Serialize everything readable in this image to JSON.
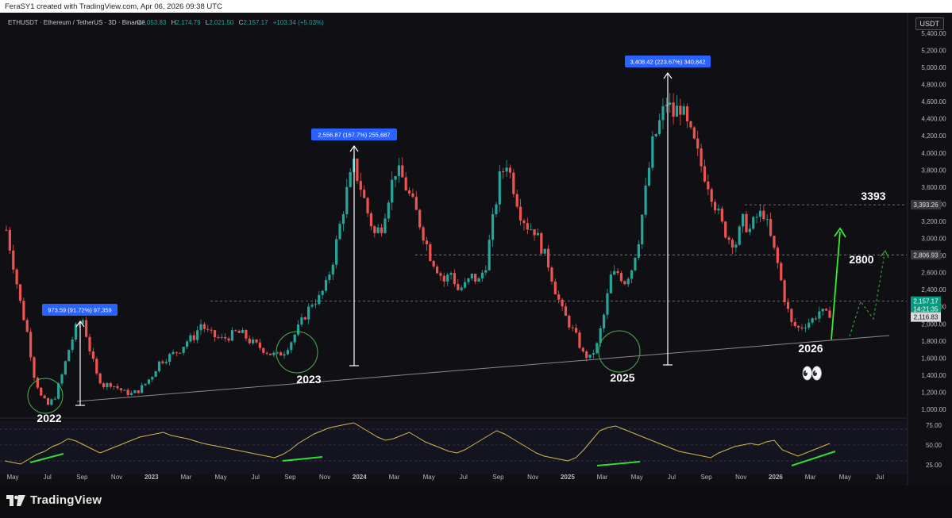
{
  "credit": "FeraSY1 created with TradingView.com, Apr 06, 2026 09:38 UTC",
  "header": {
    "symbol": "ETHUSDT · Ethereum / TetherUS · 3D · Binance",
    "open_label": "O",
    "open": "2,053.83",
    "high_label": "H",
    "high": "2,174.79",
    "low_label": "L",
    "low": "2,021.50",
    "close_label": "C",
    "close": "2,157.17",
    "change": "+103.34 (+5.03%)"
  },
  "currency_badge": "USDT",
  "brand": "TradingView",
  "colors": {
    "background": "#0f0f14",
    "up": "#26a69a",
    "down": "#ef5350",
    "rsi": "#d6b64a",
    "annotation_green": "#4caf50",
    "measure_badge": "#2962ff"
  },
  "chart_data": [
    {
      "type": "candlestick",
      "title": "ETHUSDT · Ethereum / TetherUS · 3D · Binance",
      "ylim": [
        900,
        5500
      ],
      "y_ticks": [
        "1,000.00",
        "1,200.00",
        "1,400.00",
        "1,600.00",
        "1,800.00",
        "2,000.00",
        "2,200.00",
        "2,400.00",
        "2,600.00",
        "2,800.00",
        "3,000.00",
        "3,200.00",
        "3,400.00",
        "3,600.00",
        "3,800.00",
        "4,000.00",
        "4,200.00",
        "4,400.00",
        "4,600.00",
        "4,800.00",
        "5,000.00",
        "5,200.00",
        "5,400.00"
      ],
      "x_ticks": [
        "May",
        "Jul",
        "Sep",
        "Nov",
        "2023",
        "Mar",
        "May",
        "Jul",
        "Sep",
        "Nov",
        "2024",
        "Mar",
        "May",
        "Jul",
        "Sep",
        "Nov",
        "2025",
        "Mar",
        "May",
        "Jul",
        "Sep",
        "Nov",
        "2026",
        "Mar",
        "May",
        "Jul"
      ],
      "price_path": [
        [
          0,
          3100
        ],
        [
          2,
          2700
        ],
        [
          4,
          2250
        ],
        [
          6,
          1900
        ],
        [
          8,
          1400
        ],
        [
          10,
          1150
        ],
        [
          12,
          1050
        ],
        [
          14,
          1150
        ],
        [
          16,
          1400
        ],
        [
          18,
          1700
        ],
        [
          20,
          1950
        ],
        [
          22,
          2050
        ],
        [
          24,
          1700
        ],
        [
          26,
          1400
        ],
        [
          28,
          1280
        ],
        [
          30,
          1300
        ],
        [
          32,
          1250
        ],
        [
          34,
          1200
        ],
        [
          36,
          1180
        ],
        [
          38,
          1220
        ],
        [
          40,
          1300
        ],
        [
          42,
          1400
        ],
        [
          44,
          1550
        ],
        [
          46,
          1600
        ],
        [
          48,
          1650
        ],
        [
          50,
          1700
        ],
        [
          52,
          1800
        ],
        [
          54,
          1850
        ],
        [
          56,
          2000
        ],
        [
          58,
          1900
        ],
        [
          60,
          1850
        ],
        [
          62,
          1820
        ],
        [
          64,
          1850
        ],
        [
          66,
          1900
        ],
        [
          68,
          1880
        ],
        [
          70,
          1800
        ],
        [
          72,
          1750
        ],
        [
          74,
          1700
        ],
        [
          76,
          1650
        ],
        [
          78,
          1630
        ],
        [
          80,
          1680
        ],
        [
          82,
          1800
        ],
        [
          84,
          1950
        ],
        [
          86,
          2100
        ],
        [
          88,
          2250
        ],
        [
          90,
          2300
        ],
        [
          92,
          2450
        ],
        [
          94,
          2750
        ],
        [
          96,
          3150
        ],
        [
          98,
          3550
        ],
        [
          100,
          3850
        ],
        [
          102,
          3600
        ],
        [
          104,
          3300
        ],
        [
          106,
          3050
        ],
        [
          108,
          3150
        ],
        [
          110,
          3500
        ],
        [
          112,
          3800
        ],
        [
          114,
          3700
        ],
        [
          116,
          3500
        ],
        [
          118,
          3300
        ],
        [
          120,
          3050
        ],
        [
          122,
          2800
        ],
        [
          124,
          2650
        ],
        [
          126,
          2500
        ],
        [
          128,
          2600
        ],
        [
          130,
          2400
        ],
        [
          132,
          2450
        ],
        [
          134,
          2550
        ],
        [
          136,
          2500
        ],
        [
          138,
          2700
        ],
        [
          140,
          3200
        ],
        [
          142,
          3700
        ],
        [
          144,
          3900
        ],
        [
          146,
          3600
        ],
        [
          148,
          3300
        ],
        [
          150,
          3150
        ],
        [
          152,
          3100
        ],
        [
          154,
          2900
        ],
        [
          156,
          2700
        ],
        [
          158,
          2400
        ],
        [
          160,
          2150
        ],
        [
          162,
          2000
        ],
        [
          164,
          1850
        ],
        [
          166,
          1650
        ],
        [
          168,
          1600
        ],
        [
          170,
          1750
        ],
        [
          172,
          2100
        ],
        [
          174,
          2550
        ],
        [
          176,
          2600
        ],
        [
          178,
          2500
        ],
        [
          180,
          2650
        ],
        [
          182,
          3000
        ],
        [
          184,
          3550
        ],
        [
          186,
          4100
        ],
        [
          188,
          4350
        ],
        [
          190,
          4600
        ],
        [
          192,
          4450
        ],
        [
          194,
          4550
        ],
        [
          196,
          4300
        ],
        [
          198,
          4100
        ],
        [
          200,
          3850
        ],
        [
          202,
          3650
        ],
        [
          204,
          3400
        ],
        [
          206,
          3150
        ],
        [
          208,
          3000
        ],
        [
          210,
          2950
        ],
        [
          212,
          3200
        ],
        [
          214,
          3100
        ],
        [
          216,
          3250
        ],
        [
          218,
          3300
        ],
        [
          220,
          3000
        ],
        [
          222,
          2700
        ],
        [
          224,
          2300
        ],
        [
          226,
          2000
        ],
        [
          228,
          1950
        ],
        [
          230,
          2000
        ],
        [
          232,
          2050
        ],
        [
          234,
          2150
        ],
        [
          236,
          2100
        ],
        [
          238,
          2157
        ]
      ],
      "annotations": {
        "measure_labels": [
          "973.59 (91.72%) 97,359",
          "2,556.87 (167.7%) 255,687",
          "3,408.42 (223.67%) 340,842"
        ],
        "year_labels": [
          "2022",
          "2023",
          "2025",
          "2026"
        ],
        "target_labels": [
          "3393",
          "2800"
        ],
        "emoji": "👀",
        "levels": [
          {
            "price": 3393.26,
            "label": "3,393.26"
          },
          {
            "price": 2806.93,
            "label": "2,806.93"
          },
          {
            "price": 2157.17,
            "label": "2,157.17",
            "countdown": "14:21:35"
          },
          {
            "price": 2116.83,
            "label": "2,116.83"
          }
        ],
        "trendline": "rising support line under the 2022, 2023, 2025 and 2026 lows"
      }
    },
    {
      "type": "line",
      "title": "RSI",
      "ylim": [
        15,
        90
      ],
      "y_ticks": [
        "25.00",
        "50.00",
        "75.00"
      ],
      "band": [
        30,
        70
      ],
      "values": [
        30,
        28,
        26,
        32,
        38,
        42,
        48,
        52,
        58,
        55,
        50,
        45,
        40,
        44,
        48,
        52,
        56,
        60,
        62,
        64,
        66,
        62,
        60,
        58,
        55,
        52,
        50,
        48,
        46,
        44,
        42,
        40,
        38,
        36,
        34,
        38,
        44,
        52,
        58,
        64,
        68,
        72,
        74,
        76,
        78,
        72,
        66,
        60,
        56,
        58,
        62,
        66,
        60,
        54,
        50,
        46,
        42,
        40,
        44,
        50,
        56,
        62,
        68,
        64,
        58,
        52,
        46,
        40,
        36,
        34,
        32,
        30,
        34,
        44,
        56,
        68,
        72,
        74,
        70,
        66,
        62,
        58,
        54,
        50,
        46,
        42,
        40,
        38,
        36,
        34,
        40,
        44,
        48,
        50,
        52,
        50,
        54,
        56,
        44,
        40,
        36,
        40,
        44,
        48,
        52
      ]
    }
  ]
}
